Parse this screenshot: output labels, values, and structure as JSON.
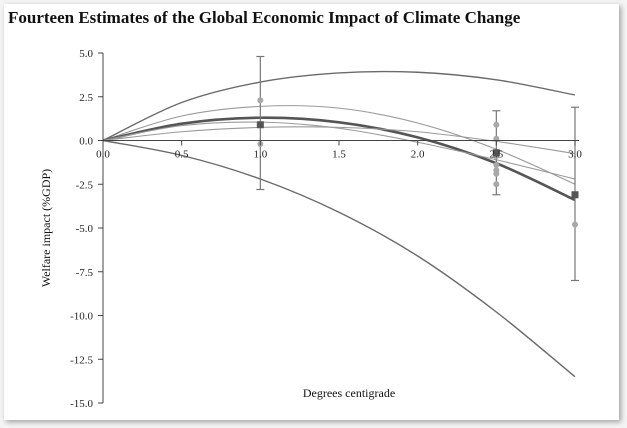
{
  "title": "Fourteen Estimates of the Global Economic Impact of Climate Change",
  "chart_data": {
    "type": "scatter",
    "title": "Fourteen Estimates of the Global Economic Impact of Climate Change",
    "xlabel": "Degrees centigrade",
    "ylabel": "Welfare impact (%GDP)",
    "xlim": [
      0,
      3.0
    ],
    "ylim": [
      -15.0,
      5.0
    ],
    "x_ticks": [
      0.0,
      0.5,
      1.0,
      1.5,
      2.0,
      2.5,
      3.0
    ],
    "x_tick_labels": [
      "0.0",
      "0.5",
      "1.0",
      "1.5",
      "2.0",
      "2.5",
      "3.0"
    ],
    "y_ticks": [
      5.0,
      2.5,
      0.0,
      -2.5,
      -5.0,
      -7.5,
      -10.0,
      -12.5,
      -15.0
    ],
    "y_tick_labels": [
      "5.0",
      "2.5",
      "0.0",
      "-2.5",
      "-5.0",
      "-7.5",
      "-10.0",
      "-12.5",
      "-15.0"
    ],
    "grid": false,
    "estimates": [
      {
        "x": 1.0,
        "y": 2.3
      },
      {
        "x": 1.0,
        "y": -0.2
      },
      {
        "x": 2.5,
        "y": 0.9
      },
      {
        "x": 2.5,
        "y": 0.1
      },
      {
        "x": 2.5,
        "y": -0.9
      },
      {
        "x": 2.5,
        "y": -1.4
      },
      {
        "x": 2.5,
        "y": -1.7
      },
      {
        "x": 2.5,
        "y": -1.9
      },
      {
        "x": 2.5,
        "y": -2.5
      },
      {
        "x": 3.0,
        "y": -4.8
      }
    ],
    "means": [
      {
        "x": 1.0,
        "y": 0.9
      },
      {
        "x": 2.5,
        "y": -0.7
      },
      {
        "x": 3.0,
        "y": -3.1
      }
    ],
    "error_bars": [
      {
        "x": 1.0,
        "low": -2.8,
        "high": 4.8
      },
      {
        "x": 2.5,
        "low": -3.1,
        "high": 1.7
      },
      {
        "x": 3.0,
        "low": -8.0,
        "high": 1.9
      }
    ],
    "curves": [
      {
        "x": [
          0,
          0.5,
          1.0,
          1.5,
          2.0,
          2.5,
          3.0
        ],
        "y": [
          0,
          2.17,
          3.34,
          3.86,
          3.9,
          3.47,
          2.6
        ],
        "weight": "medium"
      },
      {
        "x": [
          0,
          0.5,
          1.0,
          1.5,
          2.0,
          2.5,
          3.0
        ],
        "y": [
          0,
          1.4,
          1.95,
          1.85,
          1.0,
          -0.5,
          -2.5
        ],
        "weight": "thin"
      },
      {
        "x": [
          0,
          0.5,
          1.0,
          1.5,
          2.0,
          2.5,
          3.0
        ],
        "y": [
          0,
          0.96,
          1.3,
          1.04,
          0.18,
          -1.3,
          -3.4
        ],
        "weight": "thick"
      },
      {
        "x": [
          0,
          0.5,
          1.0,
          1.5,
          2.0,
          2.5,
          3.0
        ],
        "y": [
          0,
          0.85,
          1.05,
          0.7,
          -0.1,
          -1.1,
          -2.2
        ],
        "weight": "thin"
      },
      {
        "x": [
          0,
          0.5,
          1.0,
          1.5,
          2.0,
          2.5,
          3.0
        ],
        "y": [
          0,
          0.5,
          0.75,
          0.75,
          0.5,
          -0.05,
          -0.75
        ],
        "weight": "thin"
      },
      {
        "x": [
          0,
          0.5,
          1.0,
          1.5,
          2.0,
          2.5,
          3.0
        ],
        "y": [
          0,
          -0.85,
          -2.2,
          -4.1,
          -6.6,
          -9.8,
          -13.5
        ],
        "weight": "medium"
      }
    ]
  }
}
